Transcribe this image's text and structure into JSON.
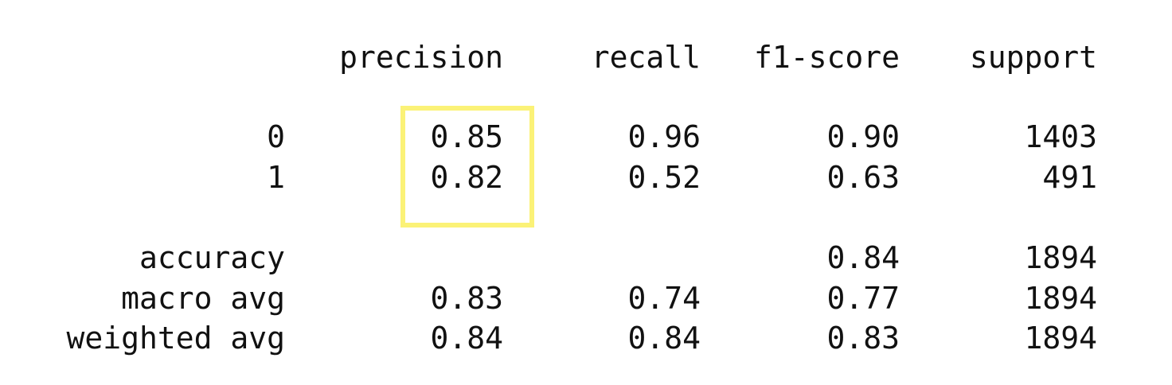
{
  "chart_data": {
    "type": "table",
    "title": "",
    "columns": [
      "precision",
      "recall",
      "f1-score",
      "support"
    ],
    "rows": [
      {
        "label": "0",
        "values": [
          "0.85",
          "0.96",
          "0.90",
          "1403"
        ]
      },
      {
        "label": "1",
        "values": [
          "0.82",
          "0.52",
          "0.63",
          "491"
        ]
      },
      {
        "label": "accuracy",
        "values": [
          "",
          "",
          "0.84",
          "1894"
        ]
      },
      {
        "label": "macro avg",
        "values": [
          "0.83",
          "0.74",
          "0.77",
          "1894"
        ]
      },
      {
        "label": "weighted avg",
        "values": [
          "0.84",
          "0.84",
          "0.83",
          "1894"
        ]
      }
    ],
    "highlight": {
      "column": "precision",
      "rows": [
        "0",
        "1"
      ],
      "color": "#fbf277"
    }
  },
  "colors": {
    "text": "#111111",
    "background": "#ffffff",
    "highlight": "#fbf277"
  }
}
